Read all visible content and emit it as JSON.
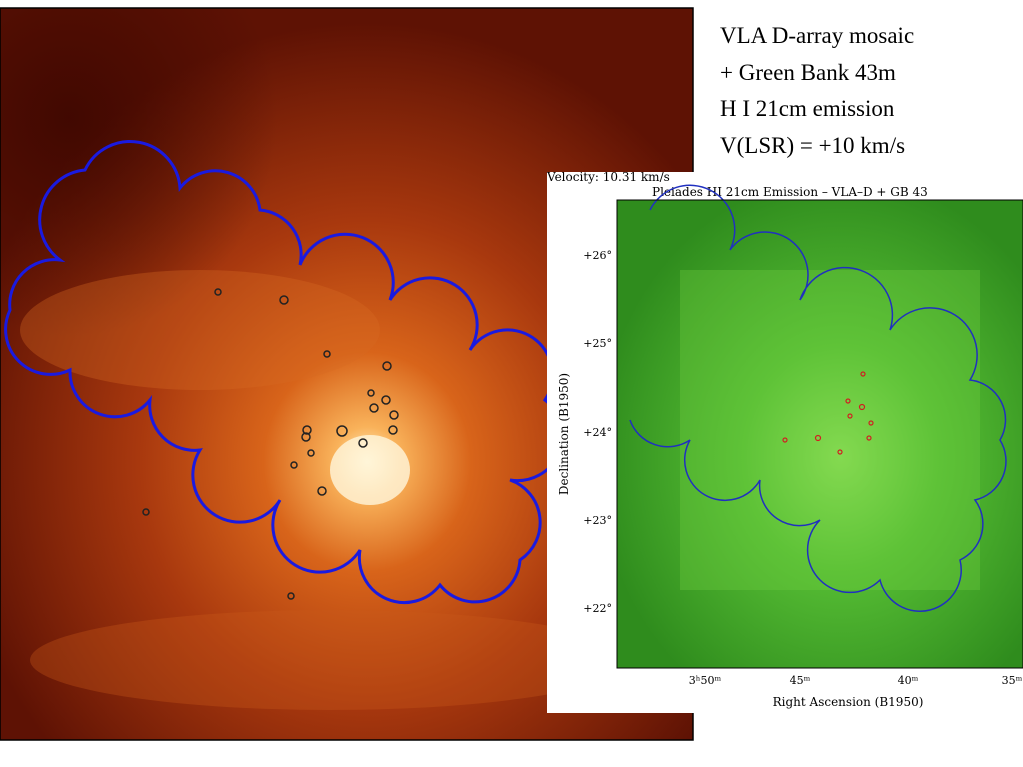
{
  "caption": {
    "lines": [
      "VLA D-array mosaic",
      "+ Green Bank 43m",
      "H I 21cm emission",
      "V(LSR) = +10 km/s"
    ]
  },
  "inset": {
    "velocity": "Velocity: 10.31 km/s",
    "title": "Pleiades HI 21cm Emission – VLA–D + GB 43",
    "y_axis_label": "Declination (B1950)",
    "x_axis_label": "Right Ascension (B1950)",
    "y_ticks": [
      "+26°",
      "+25°",
      "+24°",
      "+23°",
      "+22°"
    ],
    "x_ticks": [
      "3ʰ50ᵐ",
      "45ᵐ",
      "40ᵐ",
      "35ᵐ"
    ]
  }
}
